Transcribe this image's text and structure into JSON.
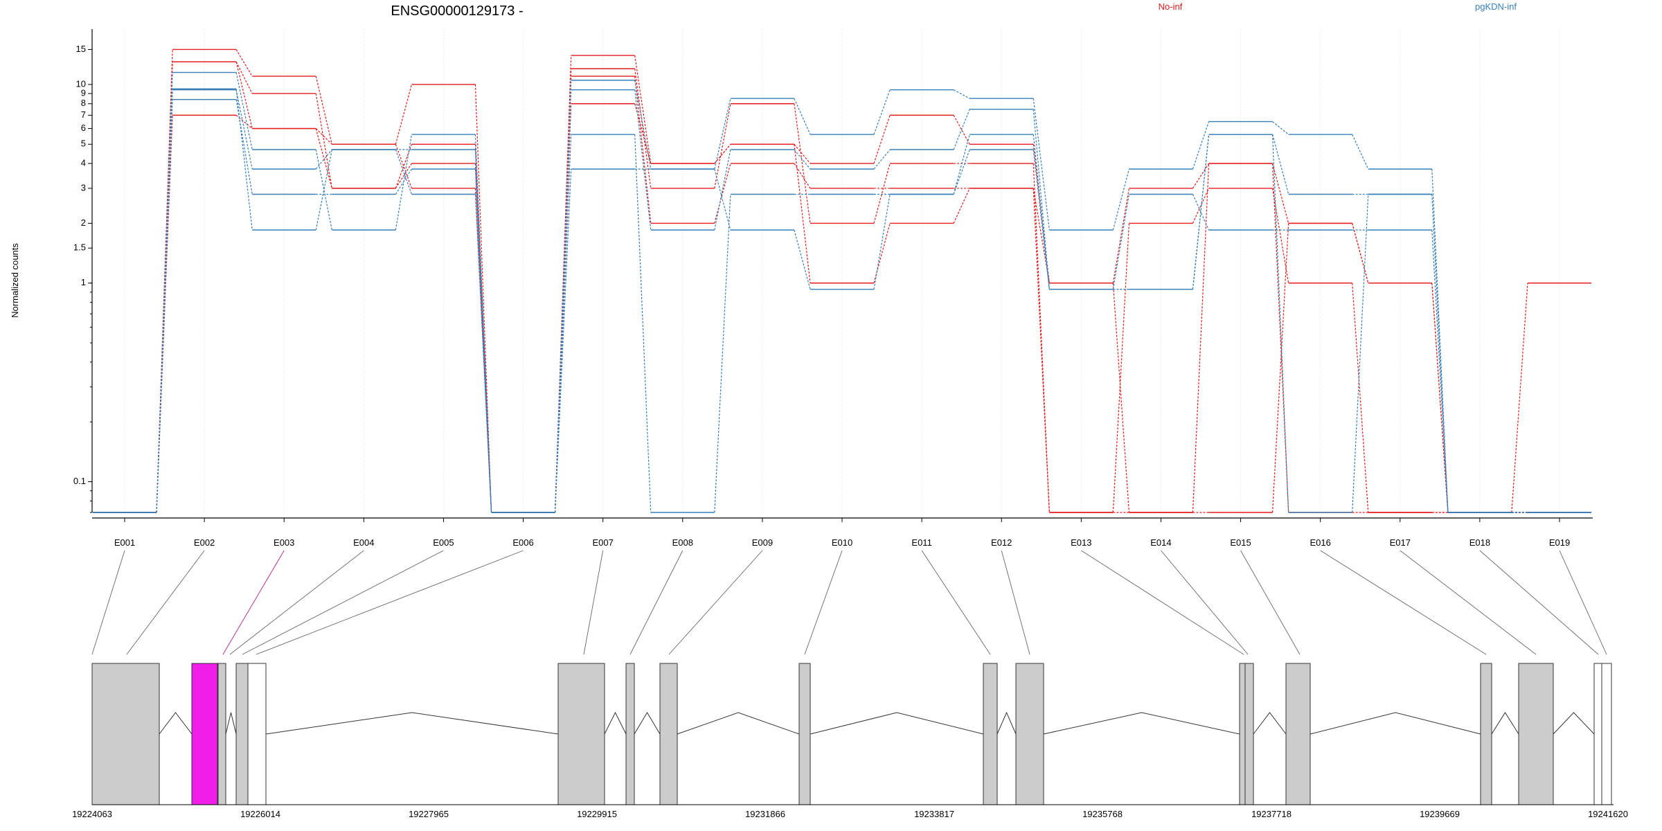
{
  "chart_data": {
    "type": "line",
    "title": "ENSG00000129173 -",
    "ylabel": "Normalized counts",
    "yscale": "log",
    "ylim": [
      0.07,
      19
    ],
    "y_ticks": [
      {
        "value": 0.1,
        "label": "0.1"
      },
      {
        "value": 1,
        "label": "1"
      },
      {
        "value": 1.5,
        "label": "1.5"
      },
      {
        "value": 2,
        "label": "2"
      },
      {
        "value": 3,
        "label": "3"
      },
      {
        "value": 4,
        "label": "4"
      },
      {
        "value": 5,
        "label": "5"
      },
      {
        "value": 6,
        "label": "6"
      },
      {
        "value": 7,
        "label": "7"
      },
      {
        "value": 8,
        "label": "8"
      },
      {
        "value": 9,
        "label": "9"
      },
      {
        "value": 10,
        "label": "10"
      },
      {
        "value": 15,
        "label": "15"
      }
    ],
    "grid": true,
    "legend": [
      {
        "name": "No-inf",
        "color": "#e41a1c",
        "placement": "top"
      },
      {
        "name": "pgKDN-inf",
        "color": "#377eb8",
        "placement": "top-right"
      }
    ],
    "categories": [
      "E001",
      "E002",
      "E003",
      "E004",
      "E005",
      "E006",
      "E007",
      "E008",
      "E009",
      "E010",
      "E011",
      "E012",
      "E013",
      "E014",
      "E015",
      "E016",
      "E017",
      "E018",
      "E019"
    ],
    "series": [
      {
        "group": "No-inf",
        "values": [
          0.07,
          15.0,
          11.0,
          5.0,
          10.0,
          0.07,
          14.0,
          4.0,
          5.0,
          4.0,
          7.0,
          5.0,
          1.0,
          3.0,
          4.0,
          2.0,
          1.0,
          0.07,
          1.0
        ]
      },
      {
        "group": "No-inf",
        "values": [
          0.07,
          13.0,
          9.0,
          3.0,
          5.0,
          0.07,
          12.0,
          3.0,
          8.0,
          2.0,
          4.0,
          4.0,
          0.07,
          2.0,
          3.0,
          1.0,
          0.07,
          0.07,
          0.07
        ]
      },
      {
        "group": "No-inf",
        "values": [
          0.07,
          13.0,
          6.0,
          3.0,
          4.0,
          0.07,
          11.0,
          2.0,
          4.0,
          3.0,
          3.0,
          3.0,
          0.07,
          0.07,
          0.07,
          2.0,
          1.0,
          0.07,
          0.07
        ]
      },
      {
        "group": "No-inf",
        "values": [
          0.07,
          7.0,
          6.0,
          5.0,
          3.0,
          0.07,
          8.0,
          4.0,
          5.0,
          1.0,
          2.0,
          3.0,
          1.0,
          0.07,
          4.0,
          0.07,
          0.07,
          0.07,
          0.07
        ]
      },
      {
        "group": "pgKDN-inf",
        "values": [
          0.07,
          11.5,
          4.7,
          1.85,
          5.6,
          0.07,
          10.5,
          3.75,
          8.5,
          5.6,
          9.4,
          8.5,
          1.85,
          3.75,
          6.5,
          5.6,
          3.75,
          0.07,
          0.07
        ]
      },
      {
        "group": "pgKDN-inf",
        "values": [
          0.07,
          9.4,
          3.75,
          4.7,
          4.7,
          0.07,
          9.4,
          1.85,
          4.7,
          3.75,
          4.7,
          7.5,
          0.93,
          0.93,
          5.6,
          2.8,
          2.8,
          0.07,
          0.07
        ]
      },
      {
        "group": "pgKDN-inf",
        "values": [
          0.07,
          8.4,
          2.8,
          2.8,
          3.75,
          0.07,
          5.6,
          0.07,
          2.8,
          2.8,
          2.8,
          5.6,
          0.93,
          2.8,
          1.85,
          1.85,
          1.85,
          0.07,
          0.07
        ]
      },
      {
        "group": "pgKDN-inf",
        "values": [
          0.07,
          9.5,
          1.85,
          4.7,
          2.8,
          0.07,
          3.75,
          3.75,
          1.85,
          0.93,
          2.8,
          4.7,
          0.93,
          0.93,
          5.6,
          0.07,
          2.8,
          0.07,
          0.07
        ]
      }
    ],
    "gene_model": {
      "coordinate_labels": [
        "19224063",
        "19226014",
        "19227965",
        "19229915",
        "19231866",
        "19233817",
        "19235768",
        "19237718",
        "19239669",
        "19241620"
      ],
      "highlighted_exon": "E003",
      "highlight_color": "#f01ee8",
      "exon_color": "#cccccc"
    }
  }
}
